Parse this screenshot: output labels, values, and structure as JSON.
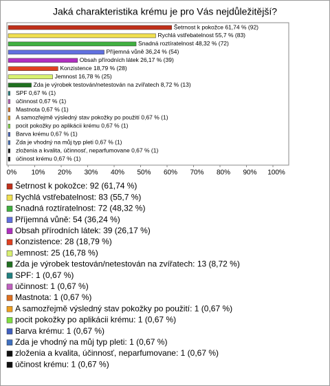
{
  "chart_data": {
    "type": "bar",
    "orientation": "horizontal",
    "title": "Jaká charakteristika krému je pro Vás nejdůležitější?",
    "values": [
      61.74,
      55.7,
      48.32,
      36.24,
      26.17,
      18.79,
      16.78,
      8.72,
      0.67,
      0.67,
      0.67,
      0.67,
      0.67,
      0.67,
      0.67,
      0.67,
      0.67
    ],
    "value_labels": [
      "Šetrnost k pokožce 61,74 % (92)",
      "Rychlá vstřebatelnost 55,7 % (83)",
      "Snadná roztíratelnost 48,32 % (72)",
      "Příjemná vůně 36,24 % (54)",
      "Obsah přírodních látek 26,17 % (39)",
      "Konzistence 18,79 % (28)",
      "Jemnost 16,78 % (25)",
      "Zda je výrobek testován/netestován na zvířatech 8,72 % (13)",
      "SPF 0,67 % (1)",
      "účinnost 0,67 % (1)",
      "Mastnota 0,67 % (1)",
      "A samozřejmě výsledný stav pokožky po použití 0,67 % (1)",
      "pocit pokožky po aplikácii krému 0,67 % (1)",
      "Barva krému 0,67 % (1)",
      "Zda je vhodný na můj typ pleti 0,67 % (1)",
      "zloženia a kvalita, účinnosť, neparfumovane 0,67 % (1)",
      "účinost krému 0,67 % (1)"
    ],
    "legend": [
      "Šetrnost k pokožce: 92 (61,74 %)",
      "Rychlá vstřebatelnost: 83 (55,7 %)",
      "Snadná roztíratelnost: 72 (48,32 %)",
      "Příjemná vůně: 54 (36,24 %)",
      "Obsah přírodních látek: 39 (26,17 %)",
      "Konzistence: 28 (18,79 %)",
      "Jemnost: 25 (16,78 %)",
      "Zda je výrobek testován/netestován na zvířatech: 13 (8,72 %)",
      "SPF: 1 (0,67 %)",
      "účinnost: 1 (0,67 %)",
      "Mastnota: 1 (0,67 %)",
      "A samozřejmě výsledný stav pokožky po použití: 1 (0,67 %)",
      "pocit pokožky po aplikácii krému: 1 (0,67 %)",
      "Barva krému: 1 (0,67 %)",
      "Zda je vhodný na můj typ pleti: 1 (0,67 %)",
      "zloženia a kvalita, účinnosť, neparfumovane: 1 (0,67 %)",
      "účinost krému: 1 (0,67 %)"
    ],
    "colors": [
      "#c0301a",
      "#f0e050",
      "#40b040",
      "#6070e0",
      "#b030c0",
      "#e04020",
      "#d8f070",
      "#207020",
      "#208080",
      "#c060c0",
      "#e07020",
      "#f0a020",
      "#80e040",
      "#4060c0",
      "#4070c0",
      "#101010",
      "#101010"
    ],
    "xlim": [
      0,
      100
    ],
    "xticks": [
      {
        "value": 0,
        "label": "0%"
      },
      {
        "value": 10,
        "label": "10%"
      },
      {
        "value": 20,
        "label": "20%"
      },
      {
        "value": 30,
        "label": "30%"
      },
      {
        "value": 40,
        "label": "40%"
      },
      {
        "value": 50,
        "label": "50%"
      },
      {
        "value": 60,
        "label": "60%"
      },
      {
        "value": 70,
        "label": "70%"
      },
      {
        "value": 80,
        "label": "80%"
      },
      {
        "value": 90,
        "label": "90%"
      },
      {
        "value": 100,
        "label": "100%"
      }
    ]
  }
}
